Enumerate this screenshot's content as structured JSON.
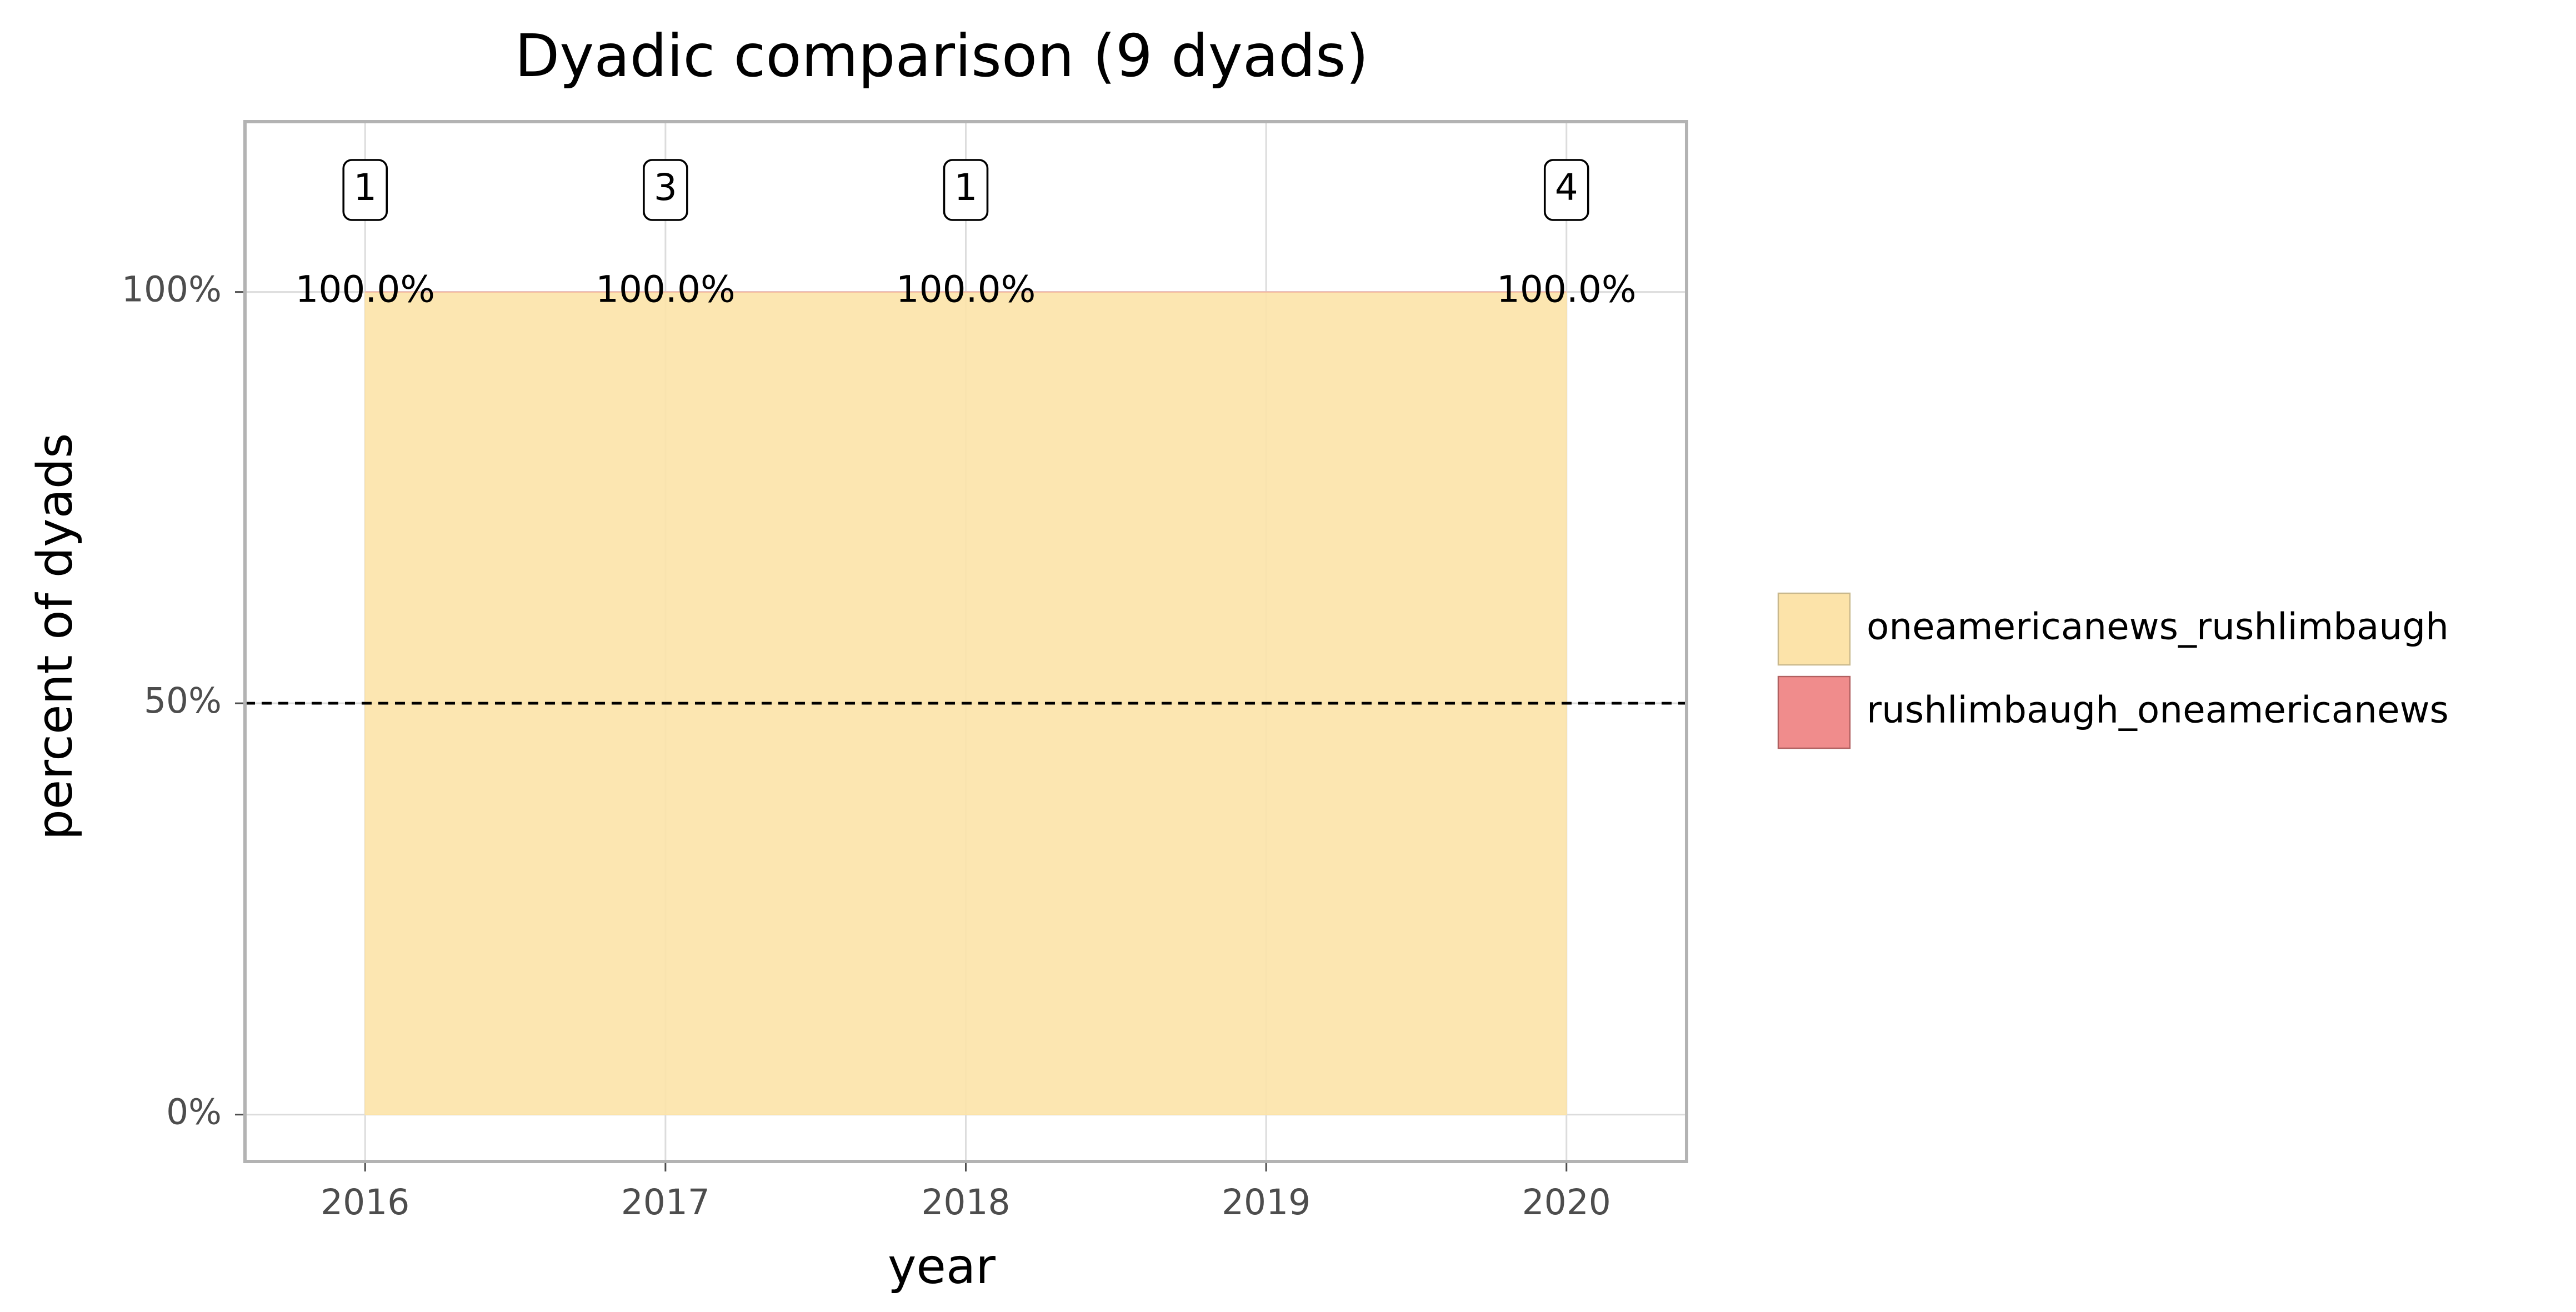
{
  "chart_data": {
    "type": "area",
    "title": "Dyadic comparison (9 dyads)",
    "x_label": "year",
    "y_label": "percent of dyads",
    "x": [
      2016,
      2017,
      2018,
      2020
    ],
    "series": [
      {
        "name": "oneamericanews_rushlimbaugh",
        "color": "#fce3a9",
        "values": [
          100,
          100,
          100,
          100
        ],
        "value_labels": [
          "100.0%",
          "100.0%",
          "100.0%",
          "100.0%"
        ]
      },
      {
        "name": "rushlimbaugh_oneamericanews",
        "color": "#f08c8c",
        "values": [
          0,
          0,
          0,
          0
        ]
      }
    ],
    "count_labels": [
      1,
      3,
      1,
      4
    ],
    "xlim": [
      2015.6,
      2020.4
    ],
    "ylim": [
      -5.7,
      120.7
    ],
    "xticks": [
      2016,
      2017,
      2018,
      2019,
      2020
    ],
    "yticks": [
      {
        "value": 0,
        "label": "0%"
      },
      {
        "value": 50,
        "label": "50%"
      },
      {
        "value": 100,
        "label": "100%"
      }
    ],
    "reference_line": 50,
    "grid": true,
    "legend": "right"
  }
}
